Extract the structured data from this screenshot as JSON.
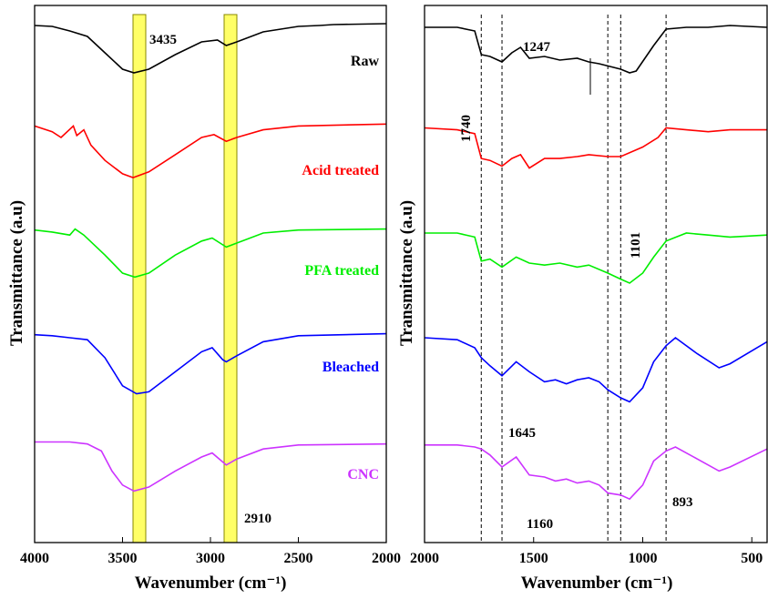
{
  "chart_data": [
    {
      "type": "line",
      "panel": "left",
      "xlabel": "Wavenumber (cm⁻¹)",
      "ylabel": "Transmittance (a.u)",
      "xlim": [
        4000,
        2000
      ],
      "x_reversed": true,
      "xticks": [
        "4000",
        "3500",
        "3000",
        "2500",
        "2000"
      ],
      "yticks_labeled": false,
      "grid": false,
      "highlight_bands": [
        {
          "center": 3435,
          "label": "3435",
          "color": "#ffff66"
        },
        {
          "center": 2910,
          "label": "2910",
          "color": "#ffff66"
        }
      ],
      "series": [
        {
          "name": "Raw",
          "color": "#000000",
          "points": [
            [
              4000,
              0.92
            ],
            [
              3900,
              0.91
            ],
            [
              3800,
              0.86
            ],
            [
              3700,
              0.8
            ],
            [
              3600,
              0.62
            ],
            [
              3500,
              0.44
            ],
            [
              3435,
              0.4
            ],
            [
              3350,
              0.44
            ],
            [
              3200,
              0.6
            ],
            [
              3050,
              0.74
            ],
            [
              2960,
              0.76
            ],
            [
              2910,
              0.7
            ],
            [
              2850,
              0.74
            ],
            [
              2700,
              0.85
            ],
            [
              2500,
              0.91
            ],
            [
              2380,
              0.92
            ],
            [
              2300,
              0.93
            ],
            [
              2000,
              0.94
            ]
          ]
        },
        {
          "name": "Acid treated",
          "color": "#ff0000",
          "points": [
            [
              4000,
              0.92
            ],
            [
              3900,
              0.86
            ],
            [
              3850,
              0.8
            ],
            [
              3780,
              0.92
            ],
            [
              3760,
              0.82
            ],
            [
              3720,
              0.88
            ],
            [
              3680,
              0.72
            ],
            [
              3600,
              0.56
            ],
            [
              3500,
              0.42
            ],
            [
              3440,
              0.38
            ],
            [
              3350,
              0.44
            ],
            [
              3200,
              0.62
            ],
            [
              3050,
              0.8
            ],
            [
              2980,
              0.83
            ],
            [
              2910,
              0.76
            ],
            [
              2850,
              0.8
            ],
            [
              2700,
              0.88
            ],
            [
              2500,
              0.92
            ],
            [
              2000,
              0.94
            ]
          ]
        },
        {
          "name": "PFA treated",
          "color": "#00ee00",
          "points": [
            [
              4000,
              0.93
            ],
            [
              3900,
              0.91
            ],
            [
              3800,
              0.88
            ],
            [
              3770,
              0.94
            ],
            [
              3720,
              0.88
            ],
            [
              3600,
              0.68
            ],
            [
              3500,
              0.5
            ],
            [
              3430,
              0.46
            ],
            [
              3350,
              0.5
            ],
            [
              3200,
              0.68
            ],
            [
              3050,
              0.82
            ],
            [
              2990,
              0.85
            ],
            [
              2910,
              0.76
            ],
            [
              2850,
              0.8
            ],
            [
              2700,
              0.9
            ],
            [
              2500,
              0.93
            ],
            [
              2000,
              0.94
            ]
          ]
        },
        {
          "name": "Bleached",
          "color": "#0000ff",
          "points": [
            [
              4000,
              0.93
            ],
            [
              3900,
              0.92
            ],
            [
              3800,
              0.9
            ],
            [
              3700,
              0.88
            ],
            [
              3600,
              0.7
            ],
            [
              3500,
              0.42
            ],
            [
              3420,
              0.34
            ],
            [
              3350,
              0.36
            ],
            [
              3200,
              0.56
            ],
            [
              3050,
              0.76
            ],
            [
              2990,
              0.8
            ],
            [
              2930,
              0.68
            ],
            [
              2910,
              0.66
            ],
            [
              2850,
              0.72
            ],
            [
              2700,
              0.86
            ],
            [
              2500,
              0.92
            ],
            [
              2000,
              0.94
            ]
          ]
        },
        {
          "name": "CNC",
          "color": "#cc33ff",
          "points": [
            [
              4000,
              0.95
            ],
            [
              3800,
              0.95
            ],
            [
              3700,
              0.93
            ],
            [
              3620,
              0.86
            ],
            [
              3560,
              0.66
            ],
            [
              3500,
              0.52
            ],
            [
              3435,
              0.46
            ],
            [
              3350,
              0.5
            ],
            [
              3200,
              0.66
            ],
            [
              3050,
              0.8
            ],
            [
              2990,
              0.84
            ],
            [
              2910,
              0.72
            ],
            [
              2850,
              0.78
            ],
            [
              2700,
              0.88
            ],
            [
              2500,
              0.92
            ],
            [
              2000,
              0.93
            ]
          ]
        }
      ]
    },
    {
      "type": "line",
      "panel": "right",
      "xlabel": "Wavenumber (cm⁻¹)",
      "ylabel": "Transmittance (a.u)",
      "xlim": [
        2000,
        430
      ],
      "x_reversed": true,
      "xticks": [
        "2000",
        "1500",
        "1000",
        "500"
      ],
      "yticks_labeled": false,
      "grid": false,
      "reference_lines": [
        1740,
        1645,
        1160,
        1101,
        893
      ],
      "annotations": [
        {
          "text": "1740",
          "x": 1740,
          "rotated": true
        },
        {
          "text": "1247",
          "x": 1247
        },
        {
          "text": "1101",
          "x": 1101,
          "rotated": true
        },
        {
          "text": "1645",
          "x": 1645
        },
        {
          "text": "1160",
          "x": 1160
        },
        {
          "text": "893",
          "x": 893
        }
      ],
      "series": [
        {
          "name": "Raw",
          "color": "#000000",
          "points": [
            [
              2000,
              0.9
            ],
            [
              1850,
              0.9
            ],
            [
              1770,
              0.86
            ],
            [
              1740,
              0.6
            ],
            [
              1700,
              0.58
            ],
            [
              1645,
              0.52
            ],
            [
              1600,
              0.62
            ],
            [
              1560,
              0.68
            ],
            [
              1520,
              0.56
            ],
            [
              1450,
              0.58
            ],
            [
              1380,
              0.54
            ],
            [
              1300,
              0.56
            ],
            [
              1247,
              0.52
            ],
            [
              1200,
              0.5
            ],
            [
              1101,
              0.44
            ],
            [
              1060,
              0.4
            ],
            [
              1030,
              0.42
            ],
            [
              950,
              0.7
            ],
            [
              893,
              0.88
            ],
            [
              800,
              0.9
            ],
            [
              700,
              0.9
            ],
            [
              600,
              0.92
            ],
            [
              430,
              0.9
            ]
          ]
        },
        {
          "name": "Acid treated",
          "color": "#ff0000",
          "points": [
            [
              2000,
              0.9
            ],
            [
              1850,
              0.88
            ],
            [
              1770,
              0.84
            ],
            [
              1740,
              0.58
            ],
            [
              1700,
              0.56
            ],
            [
              1645,
              0.5
            ],
            [
              1600,
              0.58
            ],
            [
              1560,
              0.62
            ],
            [
              1520,
              0.48
            ],
            [
              1450,
              0.58
            ],
            [
              1380,
              0.58
            ],
            [
              1300,
              0.6
            ],
            [
              1247,
              0.62
            ],
            [
              1160,
              0.6
            ],
            [
              1101,
              0.6
            ],
            [
              1000,
              0.7
            ],
            [
              930,
              0.8
            ],
            [
              893,
              0.9
            ],
            [
              800,
              0.88
            ],
            [
              700,
              0.86
            ],
            [
              600,
              0.88
            ],
            [
              430,
              0.88
            ]
          ]
        },
        {
          "name": "PFA treated",
          "color": "#00ee00",
          "points": [
            [
              2000,
              0.9
            ],
            [
              1850,
              0.9
            ],
            [
              1770,
              0.86
            ],
            [
              1740,
              0.62
            ],
            [
              1700,
              0.64
            ],
            [
              1645,
              0.56
            ],
            [
              1580,
              0.66
            ],
            [
              1520,
              0.6
            ],
            [
              1450,
              0.58
            ],
            [
              1380,
              0.6
            ],
            [
              1300,
              0.56
            ],
            [
              1247,
              0.58
            ],
            [
              1160,
              0.5
            ],
            [
              1101,
              0.44
            ],
            [
              1060,
              0.4
            ],
            [
              1000,
              0.5
            ],
            [
              950,
              0.66
            ],
            [
              893,
              0.82
            ],
            [
              800,
              0.9
            ],
            [
              700,
              0.88
            ],
            [
              600,
              0.86
            ],
            [
              430,
              0.88
            ]
          ]
        },
        {
          "name": "Bleached",
          "color": "#0000ff",
          "points": [
            [
              2000,
              0.9
            ],
            [
              1850,
              0.88
            ],
            [
              1770,
              0.8
            ],
            [
              1740,
              0.7
            ],
            [
              1700,
              0.62
            ],
            [
              1645,
              0.52
            ],
            [
              1580,
              0.66
            ],
            [
              1520,
              0.56
            ],
            [
              1450,
              0.46
            ],
            [
              1400,
              0.48
            ],
            [
              1350,
              0.44
            ],
            [
              1300,
              0.48
            ],
            [
              1247,
              0.5
            ],
            [
              1200,
              0.46
            ],
            [
              1160,
              0.38
            ],
            [
              1101,
              0.3
            ],
            [
              1060,
              0.26
            ],
            [
              1000,
              0.4
            ],
            [
              950,
              0.66
            ],
            [
              893,
              0.82
            ],
            [
              850,
              0.9
            ],
            [
              750,
              0.74
            ],
            [
              650,
              0.6
            ],
            [
              600,
              0.64
            ],
            [
              430,
              0.86
            ]
          ]
        },
        {
          "name": "CNC",
          "color": "#cc33ff",
          "points": [
            [
              2000,
              0.92
            ],
            [
              1850,
              0.92
            ],
            [
              1770,
              0.9
            ],
            [
              1740,
              0.88
            ],
            [
              1700,
              0.82
            ],
            [
              1645,
              0.7
            ],
            [
              1580,
              0.8
            ],
            [
              1520,
              0.62
            ],
            [
              1450,
              0.6
            ],
            [
              1400,
              0.56
            ],
            [
              1350,
              0.58
            ],
            [
              1300,
              0.54
            ],
            [
              1247,
              0.56
            ],
            [
              1200,
              0.52
            ],
            [
              1160,
              0.44
            ],
            [
              1101,
              0.42
            ],
            [
              1060,
              0.38
            ],
            [
              1000,
              0.52
            ],
            [
              950,
              0.76
            ],
            [
              893,
              0.86
            ],
            [
              850,
              0.9
            ],
            [
              750,
              0.78
            ],
            [
              650,
              0.66
            ],
            [
              600,
              0.7
            ],
            [
              430,
              0.88
            ]
          ]
        }
      ]
    }
  ],
  "labels": {
    "left_band1": "3435",
    "left_band2": "2910",
    "left_raw": "Raw",
    "left_acid": "Acid treated",
    "left_pfa": "PFA treated",
    "left_bleached": "Bleached",
    "left_cnc": "CNC",
    "right_1740": "1740",
    "right_1247": "1247",
    "right_1101": "1101",
    "right_1645": "1645",
    "right_1160": "1160",
    "right_893": "893",
    "ylabel_left": "Transmittance (a.u)",
    "ylabel_right": "Transmittance (a.u)"
  }
}
